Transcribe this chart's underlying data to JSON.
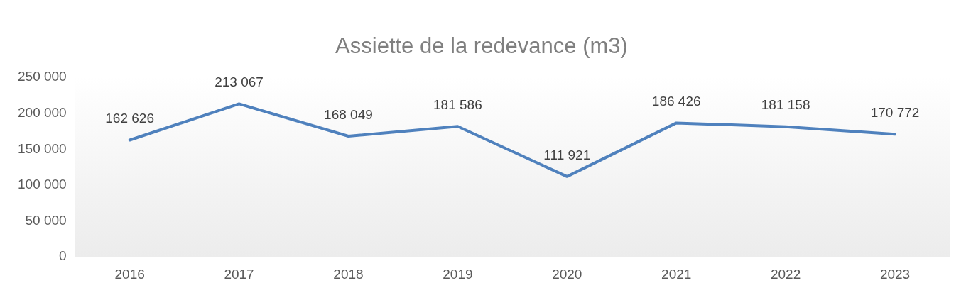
{
  "chart_data": {
    "type": "line",
    "title": "Assiette de la redevance (m3)",
    "categories": [
      "2016",
      "2017",
      "2018",
      "2019",
      "2020",
      "2021",
      "2022",
      "2023"
    ],
    "series": [
      {
        "color": "#4f81bd",
        "values": [
          162626,
          213067,
          168049,
          181586,
          111921,
          186426,
          181158,
          170772
        ],
        "value_labels": [
          "162 626",
          "213 067",
          "168 049",
          "181 586",
          "111 921",
          "186 426",
          "181 158",
          "170 772"
        ]
      }
    ],
    "ylim": [
      0,
      250000
    ],
    "yticks": [
      {
        "value": 0,
        "label": "0"
      },
      {
        "value": 50000,
        "label": "50 000"
      },
      {
        "value": 100000,
        "label": "100 000"
      },
      {
        "value": 150000,
        "label": "150 000"
      },
      {
        "value": 200000,
        "label": "200 000"
      },
      {
        "value": 250000,
        "label": "250 000"
      }
    ],
    "grid": false,
    "legend": false,
    "marker": "none",
    "line_style": "solid"
  }
}
